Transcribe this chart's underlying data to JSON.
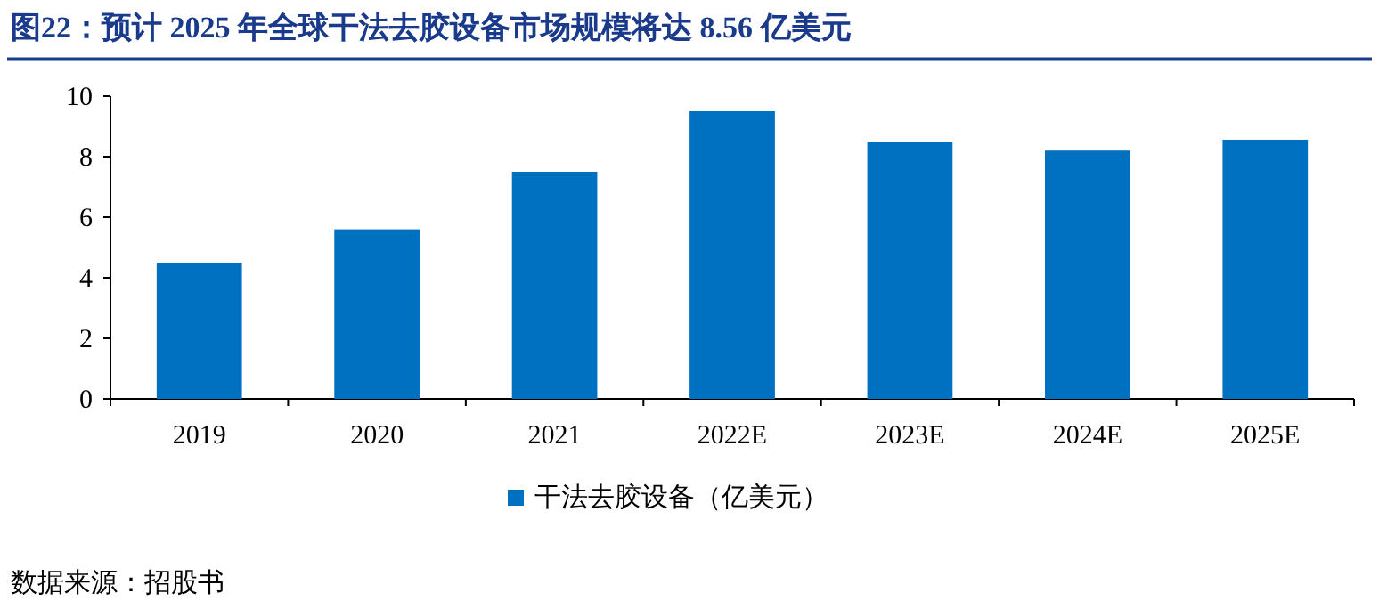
{
  "chart_data": {
    "type": "bar",
    "title": "图22：预计 2025 年全球干法去胶设备市场规模将达 8.56 亿美元",
    "categories": [
      "2019",
      "2020",
      "2021",
      "2022E",
      "2023E",
      "2024E",
      "2025E"
    ],
    "series": [
      {
        "name": "干法去胶设备（亿美元）",
        "color": "#0070c0",
        "values": [
          4.5,
          5.6,
          7.5,
          9.5,
          8.5,
          8.2,
          8.56
        ]
      }
    ],
    "ylim": [
      0,
      10
    ],
    "yticks": [
      0,
      2,
      4,
      6,
      8,
      10
    ],
    "legend": "bottom",
    "annotations": [
      "数据来源：招股书"
    ]
  }
}
